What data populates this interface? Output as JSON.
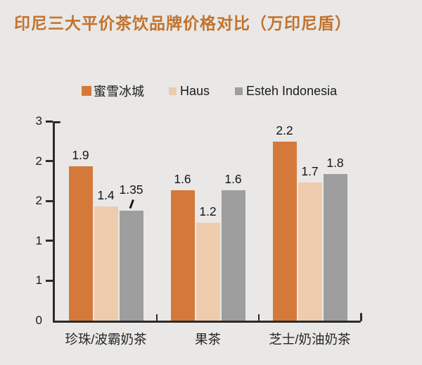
{
  "colors": {
    "background": "#E9E8E6",
    "title": "#C2722E",
    "axis": "#2B2B2B",
    "text": "#1B1B1B"
  },
  "chart_data": {
    "type": "bar",
    "title": "印尼三大平价茶饮品牌价格对比（万印尼盾）",
    "categories": [
      "珍珠/波霸奶茶",
      "果茶",
      "芝士/奶油奶茶"
    ],
    "series": [
      {
        "name": "蜜雪冰城",
        "color": "#D5793B",
        "values": [
          1.9,
          1.6,
          2.2
        ]
      },
      {
        "name": "Haus",
        "color": "#EFCBAE",
        "values": [
          1.4,
          1.2,
          1.7
        ]
      },
      {
        "name": "Esteh Indonesia",
        "color": "#9E9E9E",
        "values": [
          1.35,
          1.6,
          1.8
        ]
      }
    ],
    "y_axis": {
      "tick_labels": [
        "3",
        "2",
        "2",
        "1",
        "1",
        "0"
      ]
    },
    "ylim": [
      0,
      3
    ],
    "visual_bar_scale_max": 2.45,
    "legend_position": "top",
    "grid": false,
    "annotations": [
      {
        "category_index": 0,
        "series_index": 2,
        "type": "leader-line"
      }
    ]
  }
}
